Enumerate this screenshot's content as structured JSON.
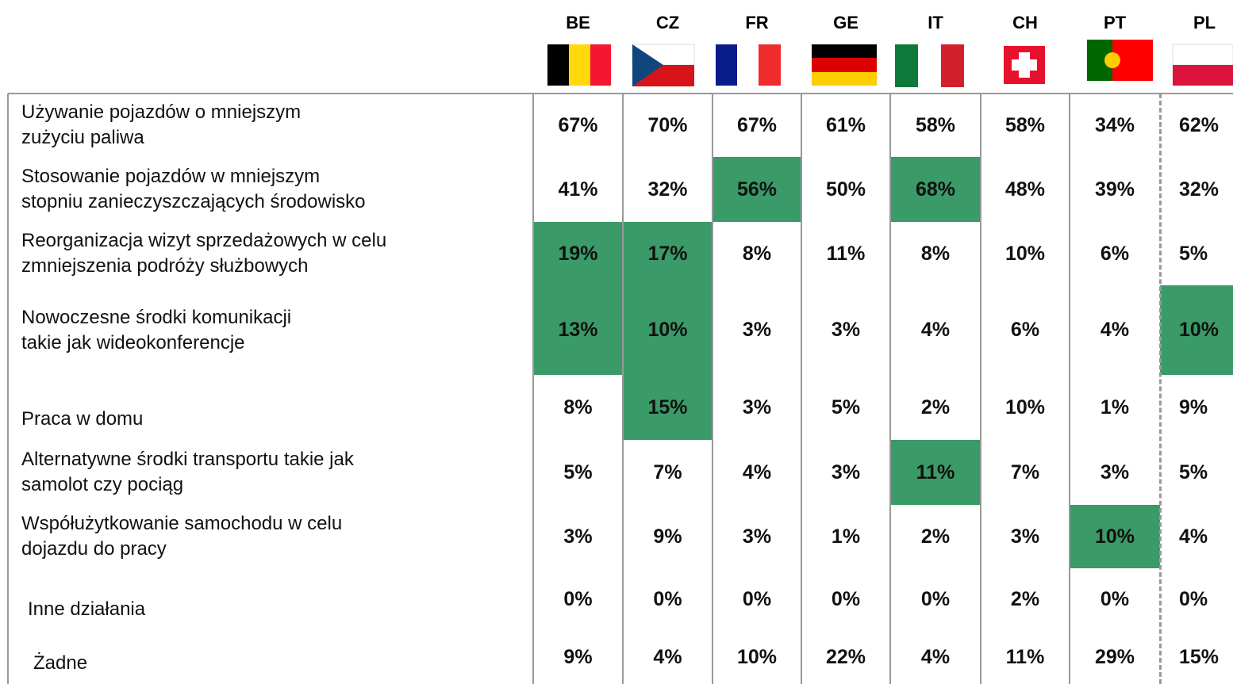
{
  "table": {
    "columns": [
      "BE",
      "CZ",
      "FR",
      "GE",
      "IT",
      "CH",
      "PT",
      "PL"
    ],
    "highlight_color": "#3a9a68",
    "rows": [
      {
        "label": [
          "Używanie pojazdów o mniejszym",
          "zużyciu paliwa"
        ],
        "values": [
          "67%",
          "70%",
          "67%",
          "61%",
          "58%",
          "58%",
          "34%",
          "62%"
        ],
        "highlight": []
      },
      {
        "label": [
          "Stosowanie pojazdów w mniejszym",
          "stopniu zanieczyszczających środowisko"
        ],
        "values": [
          "41%",
          "32%",
          "56%",
          "50%",
          "68%",
          "48%",
          "39%",
          "32%"
        ],
        "highlight": [
          2,
          4
        ]
      },
      {
        "label": [
          "Reorganizacja wizyt sprzedażowych w celu",
          "zmniejszenia podróży służbowych"
        ],
        "values": [
          "19%",
          "17%",
          "8%",
          "11%",
          "8%",
          "10%",
          "6%",
          "5%"
        ],
        "highlight": [
          0,
          1
        ]
      },
      {
        "label": [
          "Nowoczesne środki komunikacji",
          "takie jak wideokonferencje"
        ],
        "values": [
          "13%",
          "10%",
          "3%",
          "3%",
          "4%",
          "6%",
          "4%",
          "10%"
        ],
        "highlight": [
          0,
          1,
          7
        ]
      },
      {
        "label": [
          "Praca w domu"
        ],
        "values": [
          "8%",
          "15%",
          "3%",
          "5%",
          "2%",
          "10%",
          "1%",
          "9%"
        ],
        "highlight": [
          1
        ]
      },
      {
        "label": [
          "Alternatywne środki transportu takie jak",
          "samolot czy pociąg"
        ],
        "values": [
          "5%",
          "7%",
          "4%",
          "3%",
          "11%",
          "7%",
          "3%",
          "5%"
        ],
        "highlight": [
          4
        ]
      },
      {
        "label": [
          "Współużytkowanie samochodu w celu",
          "dojazdu do pracy"
        ],
        "values": [
          "3%",
          "9%",
          "3%",
          "1%",
          "2%",
          "3%",
          "10%",
          "4%"
        ],
        "highlight": [
          6
        ]
      },
      {
        "label": [
          "Inne działania"
        ],
        "values": [
          "0%",
          "0%",
          "0%",
          "0%",
          "0%",
          "2%",
          "0%",
          "0%"
        ],
        "highlight": []
      },
      {
        "label": [
          "Żadne"
        ],
        "values": [
          "9%",
          "4%",
          "10%",
          "22%",
          "4%",
          "11%",
          "29%",
          "15%"
        ],
        "highlight": []
      }
    ]
  }
}
